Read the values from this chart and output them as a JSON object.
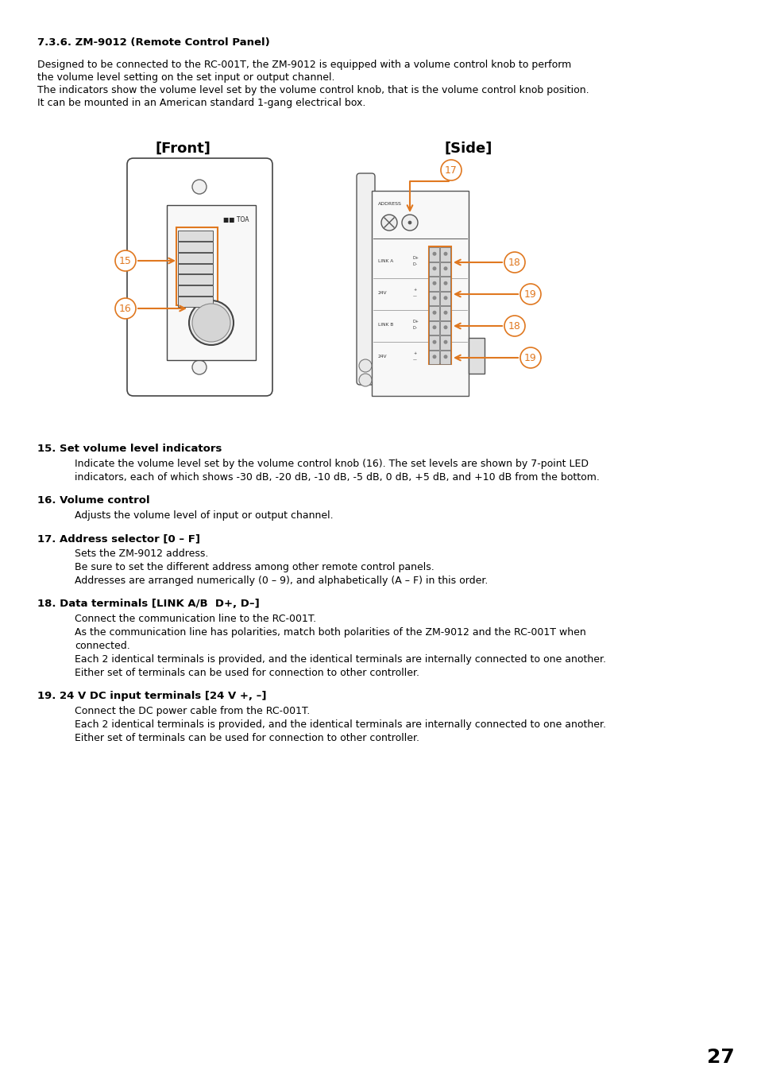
{
  "page_number": "27",
  "bg_color": "#ffffff",
  "section_title": "7.3.6. ZM-9012 (Remote Control Panel)",
  "intro_text": [
    "Designed to be connected to the RC-001T, the ZM-9012 is equipped with a volume control knob to perform",
    "the volume level setting on the set input or output channel.",
    "The indicators show the volume level set by the volume control knob, that is the volume control knob position.",
    "It can be mounted in an American standard 1-gang electrical box."
  ],
  "front_label": "[Front]",
  "side_label": "[Side]",
  "items": [
    {
      "number": "15.",
      "bold_title": "Set volume level indicators",
      "body": "Indicate the volume level set by the volume control knob (16). The set levels are shown by 7-point LED\nindicators, each of which shows -30 dB, -20 dB, -10 dB, -5 dB, 0 dB, +5 dB, and +10 dB from the bottom."
    },
    {
      "number": "16.",
      "bold_title": "Volume control",
      "body": "Adjusts the volume level of input or output channel."
    },
    {
      "number": "17.",
      "bold_title": "Address selector [0 – F]",
      "body": "Sets the ZM-9012 address.\nBe sure to set the different address among other remote control panels.\nAddresses are arranged numerically (0 – 9), and alphabetically (A – F) in this order."
    },
    {
      "number": "18.",
      "bold_title": "Data terminals [LINK A/B  D+, D–]",
      "body": "Connect the communication line to the RC-001T.\nAs the communication line has polarities, match both polarities of the ZM-9012 and the RC-001T when\nconnected.\nEach 2 identical terminals is provided, and the identical terminals are internally connected to one another.\nEither set of terminals can be used for connection to other controller."
    },
    {
      "number": "19.",
      "bold_title": "24 V DC input terminals [24 V +, –]",
      "body": "Connect the DC power cable from the RC-001T.\nEach 2 identical terminals is provided, and the identical terminals are internally connected to one another.\nEither set of terminals can be used for connection to other controller."
    }
  ],
  "arrow_color": "#e07820",
  "line_color": "#000000",
  "text_color": "#000000"
}
